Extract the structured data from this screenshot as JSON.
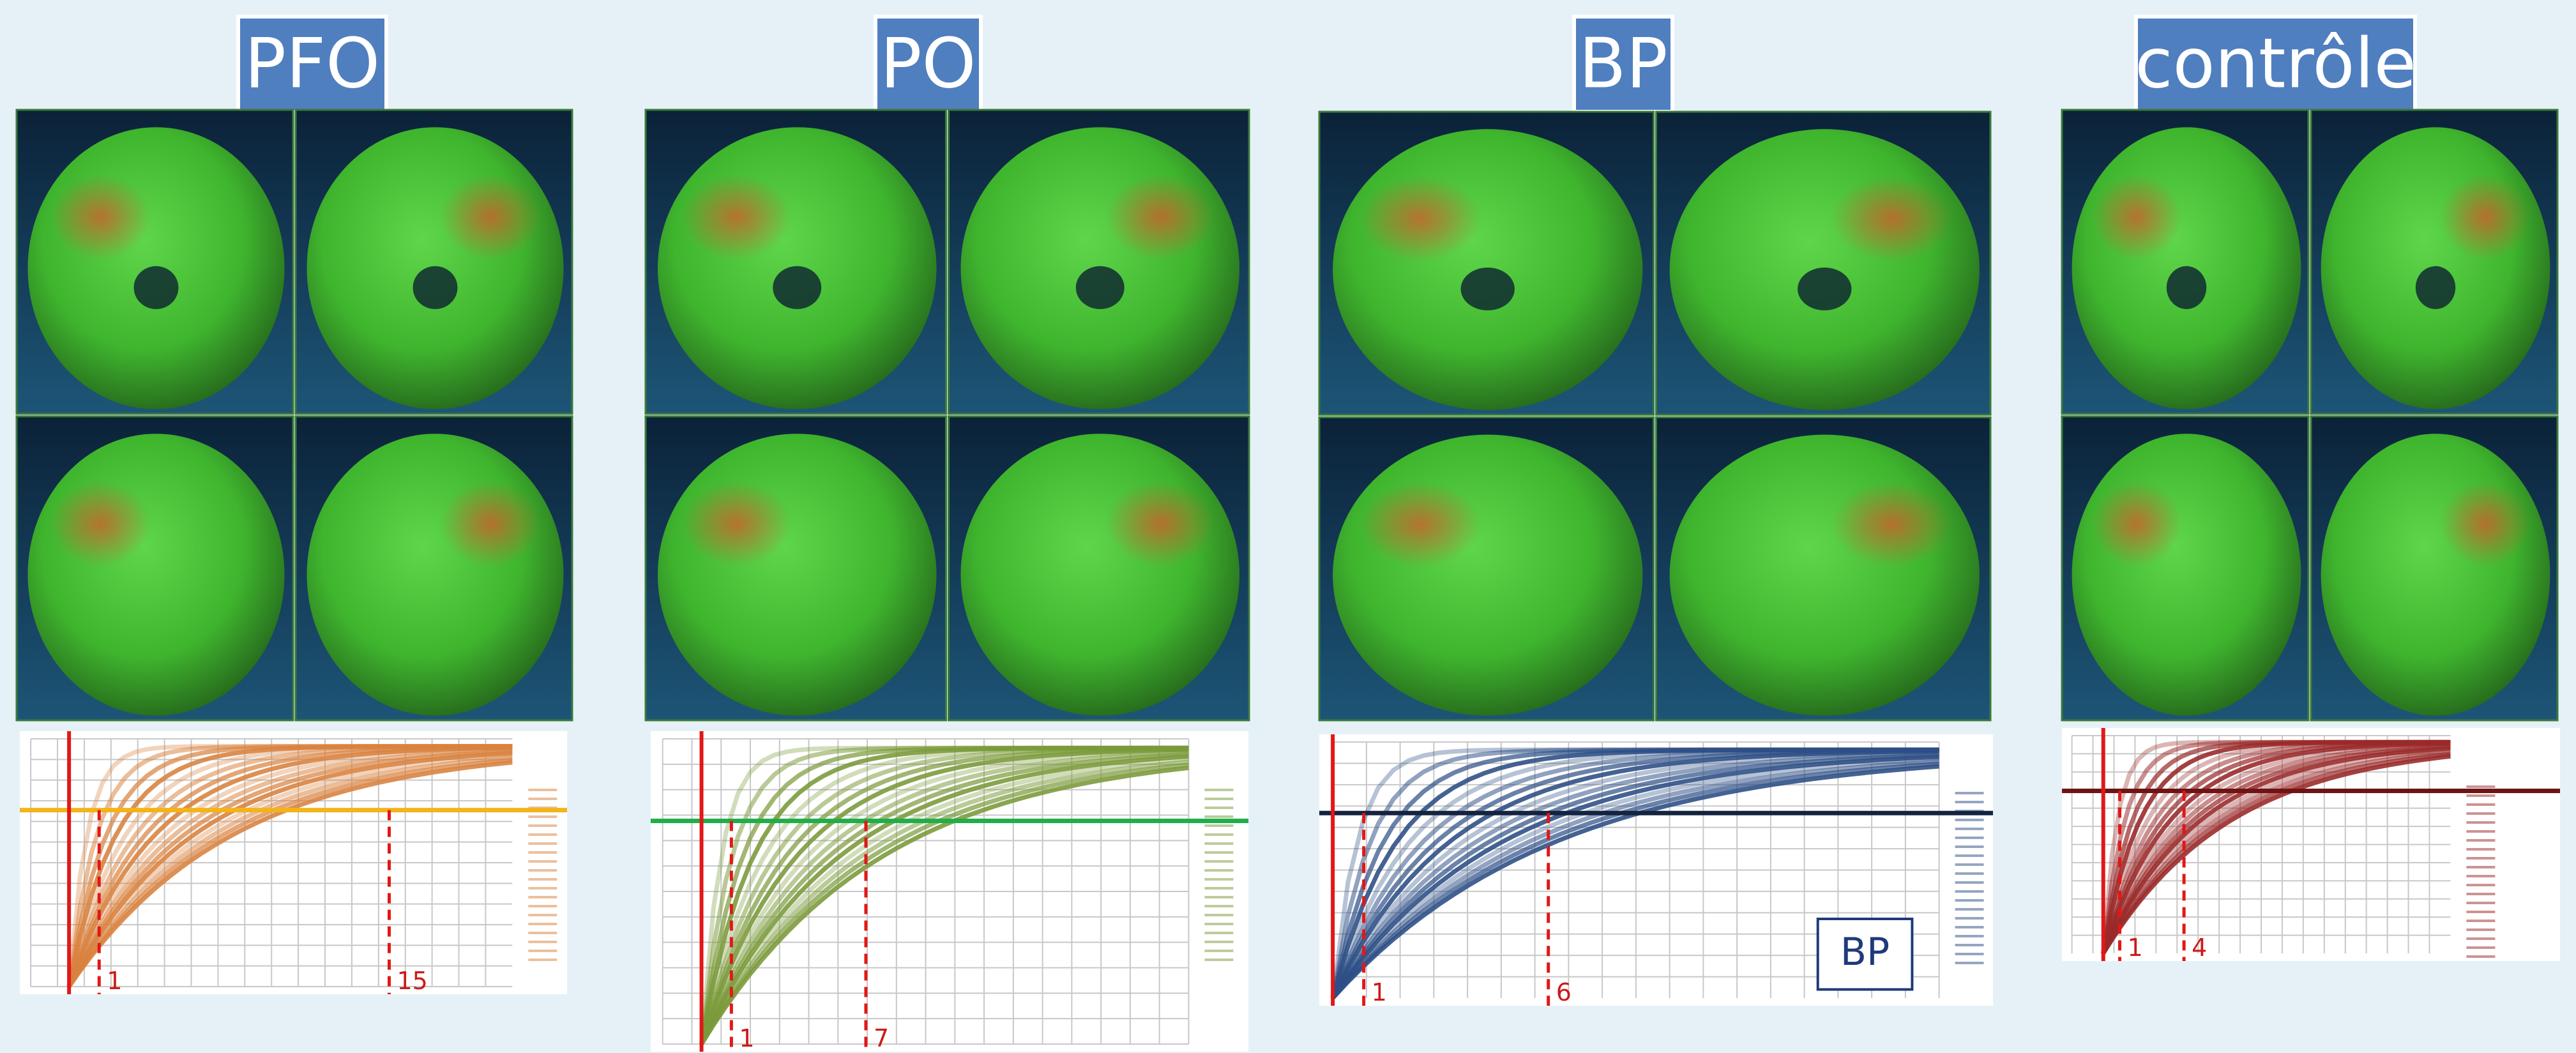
{
  "panels": [
    {
      "title": "PFO",
      "color": "#d9823f",
      "line_color": "#f2b418",
      "markers": [
        "1",
        "15"
      ]
    },
    {
      "title": "PO",
      "color": "#7a9a3a",
      "line_color": "#1fae4a",
      "markers": [
        "1",
        "7"
      ]
    },
    {
      "title": "BP",
      "color": "#2d4f86",
      "line_color": "#14233f",
      "markers": [
        "1",
        "6"
      ],
      "label": "BP"
    },
    {
      "title": "contrôle",
      "color": "#9a2a2a",
      "line_color": "#6e1414",
      "markers": [
        "1",
        "4"
      ]
    }
  ]
}
